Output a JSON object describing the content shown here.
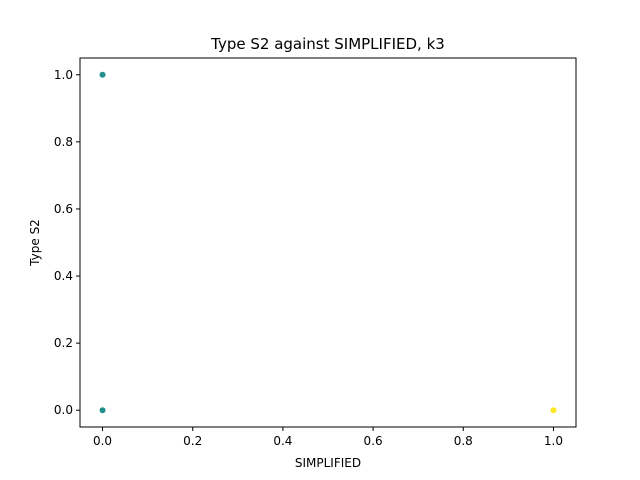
{
  "chart_data": {
    "type": "scatter",
    "title": "Type S2 against SIMPLIFIED, k3",
    "xlabel": "SIMPLIFIED",
    "ylabel": "Type S2",
    "xlim": [
      -0.05,
      1.05
    ],
    "ylim": [
      -0.05,
      1.05
    ],
    "xticks": [
      0.0,
      0.2,
      0.4,
      0.6,
      0.8,
      1.0
    ],
    "xtick_labels": [
      "0.0",
      "0.2",
      "0.4",
      "0.6",
      "0.8",
      "1.0"
    ],
    "yticks": [
      0.0,
      0.2,
      0.4,
      0.6,
      0.8,
      1.0
    ],
    "ytick_labels": [
      "0.0",
      "0.2",
      "0.4",
      "0.6",
      "0.8",
      "1.0"
    ],
    "grid": false,
    "points": [
      {
        "x": 0.0,
        "y": 1.0,
        "color": "#21908d"
      },
      {
        "x": 0.0,
        "y": 0.0,
        "color": "#21908d"
      },
      {
        "x": 1.0,
        "y": 0.0,
        "color": "#fde725"
      }
    ]
  }
}
